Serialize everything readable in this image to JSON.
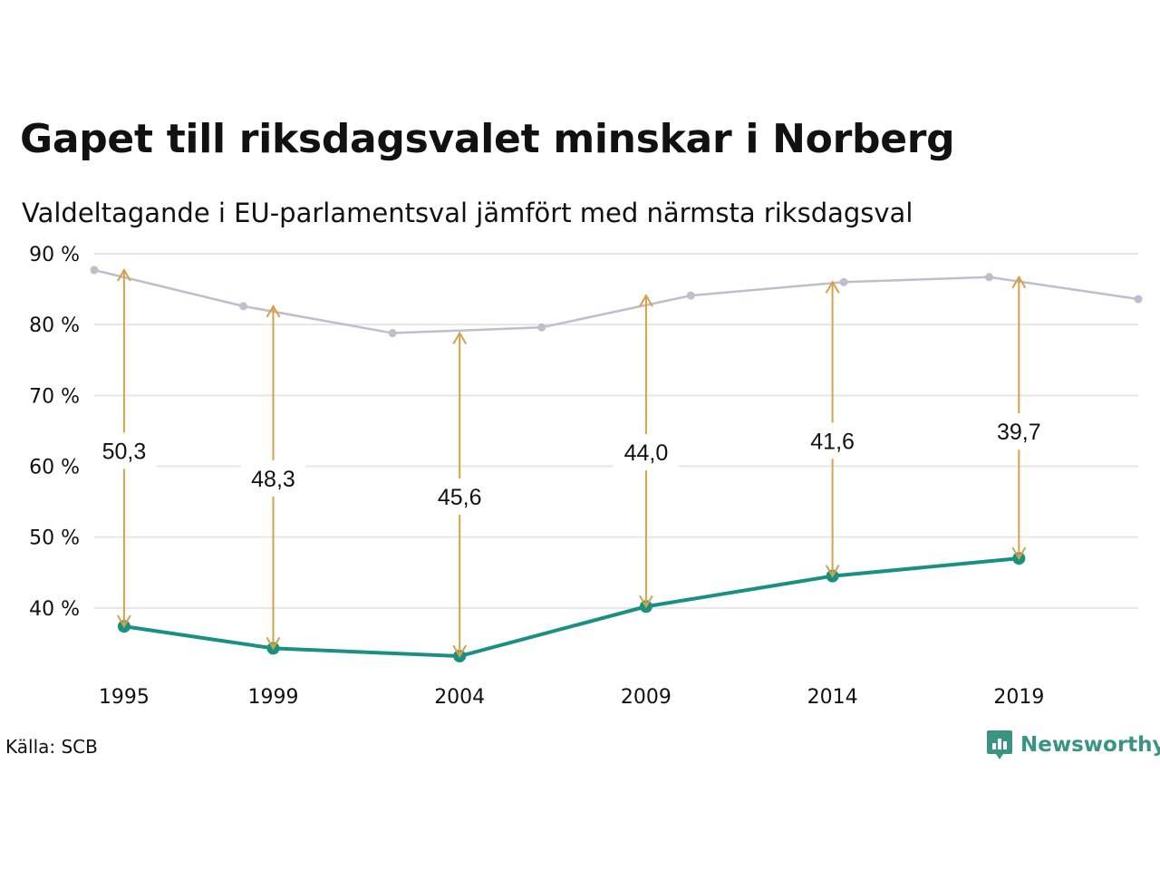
{
  "chart_data": {
    "type": "line",
    "title": "Gapet till riksdagsvalet minskar i Norberg",
    "subtitle": "Valdeltagande i EU-parlamentsval jämfört med närmsta riksdagsval",
    "ylim": [
      30,
      90
    ],
    "y_ticks": [
      40,
      50,
      60,
      70,
      80,
      90
    ],
    "y_tick_labels": [
      "40 %",
      "50 %",
      "60 %",
      "70 %",
      "80 %",
      "90 %"
    ],
    "xlim": [
      1994.2,
      2022.2
    ],
    "x_ticks": [
      1995,
      1999,
      2004,
      2009,
      2014,
      2019
    ],
    "x_tick_labels": [
      "1995",
      "1999",
      "2004",
      "2009",
      "2014",
      "2019"
    ],
    "grid": true,
    "series": [
      {
        "color": "#c1bdcc",
        "x": [
          1994.2,
          1998.2,
          2002.2,
          2006.2,
          2010.2,
          2014.3,
          2018.2,
          2022.2
        ],
        "values": [
          87.7,
          82.6,
          78.8,
          79.6,
          84.1,
          86.0,
          86.7,
          83.6
        ]
      },
      {
        "color": "#1a9180",
        "x": [
          1995,
          1999,
          2004,
          2009,
          2014,
          2019
        ],
        "values": [
          37.4,
          34.3,
          33.2,
          40.2,
          44.5,
          47.0
        ]
      }
    ],
    "gaps": {
      "color": "#d3a34a",
      "x": [
        1995,
        1999,
        2004,
        2009,
        2014,
        2019
      ],
      "from": [
        87.7,
        82.6,
        78.8,
        84.1,
        86.0,
        86.7
      ],
      "to": [
        37.4,
        34.3,
        33.2,
        40.2,
        44.5,
        47.0
      ],
      "labels": [
        "50,3",
        "48,3",
        "45,6",
        "44,0",
        "41,6",
        "39,7"
      ],
      "label_y": [
        62.2,
        58.3,
        55.7,
        62.0,
        63.6,
        64.9
      ]
    }
  },
  "footer": {
    "source": "Källa: SCB",
    "brand": "Newsworthy"
  },
  "colors": {
    "grid": "#e6e6e6",
    "brand": "#3a9483"
  },
  "icons": {
    "brand": "newsworthy-logo-icon"
  }
}
